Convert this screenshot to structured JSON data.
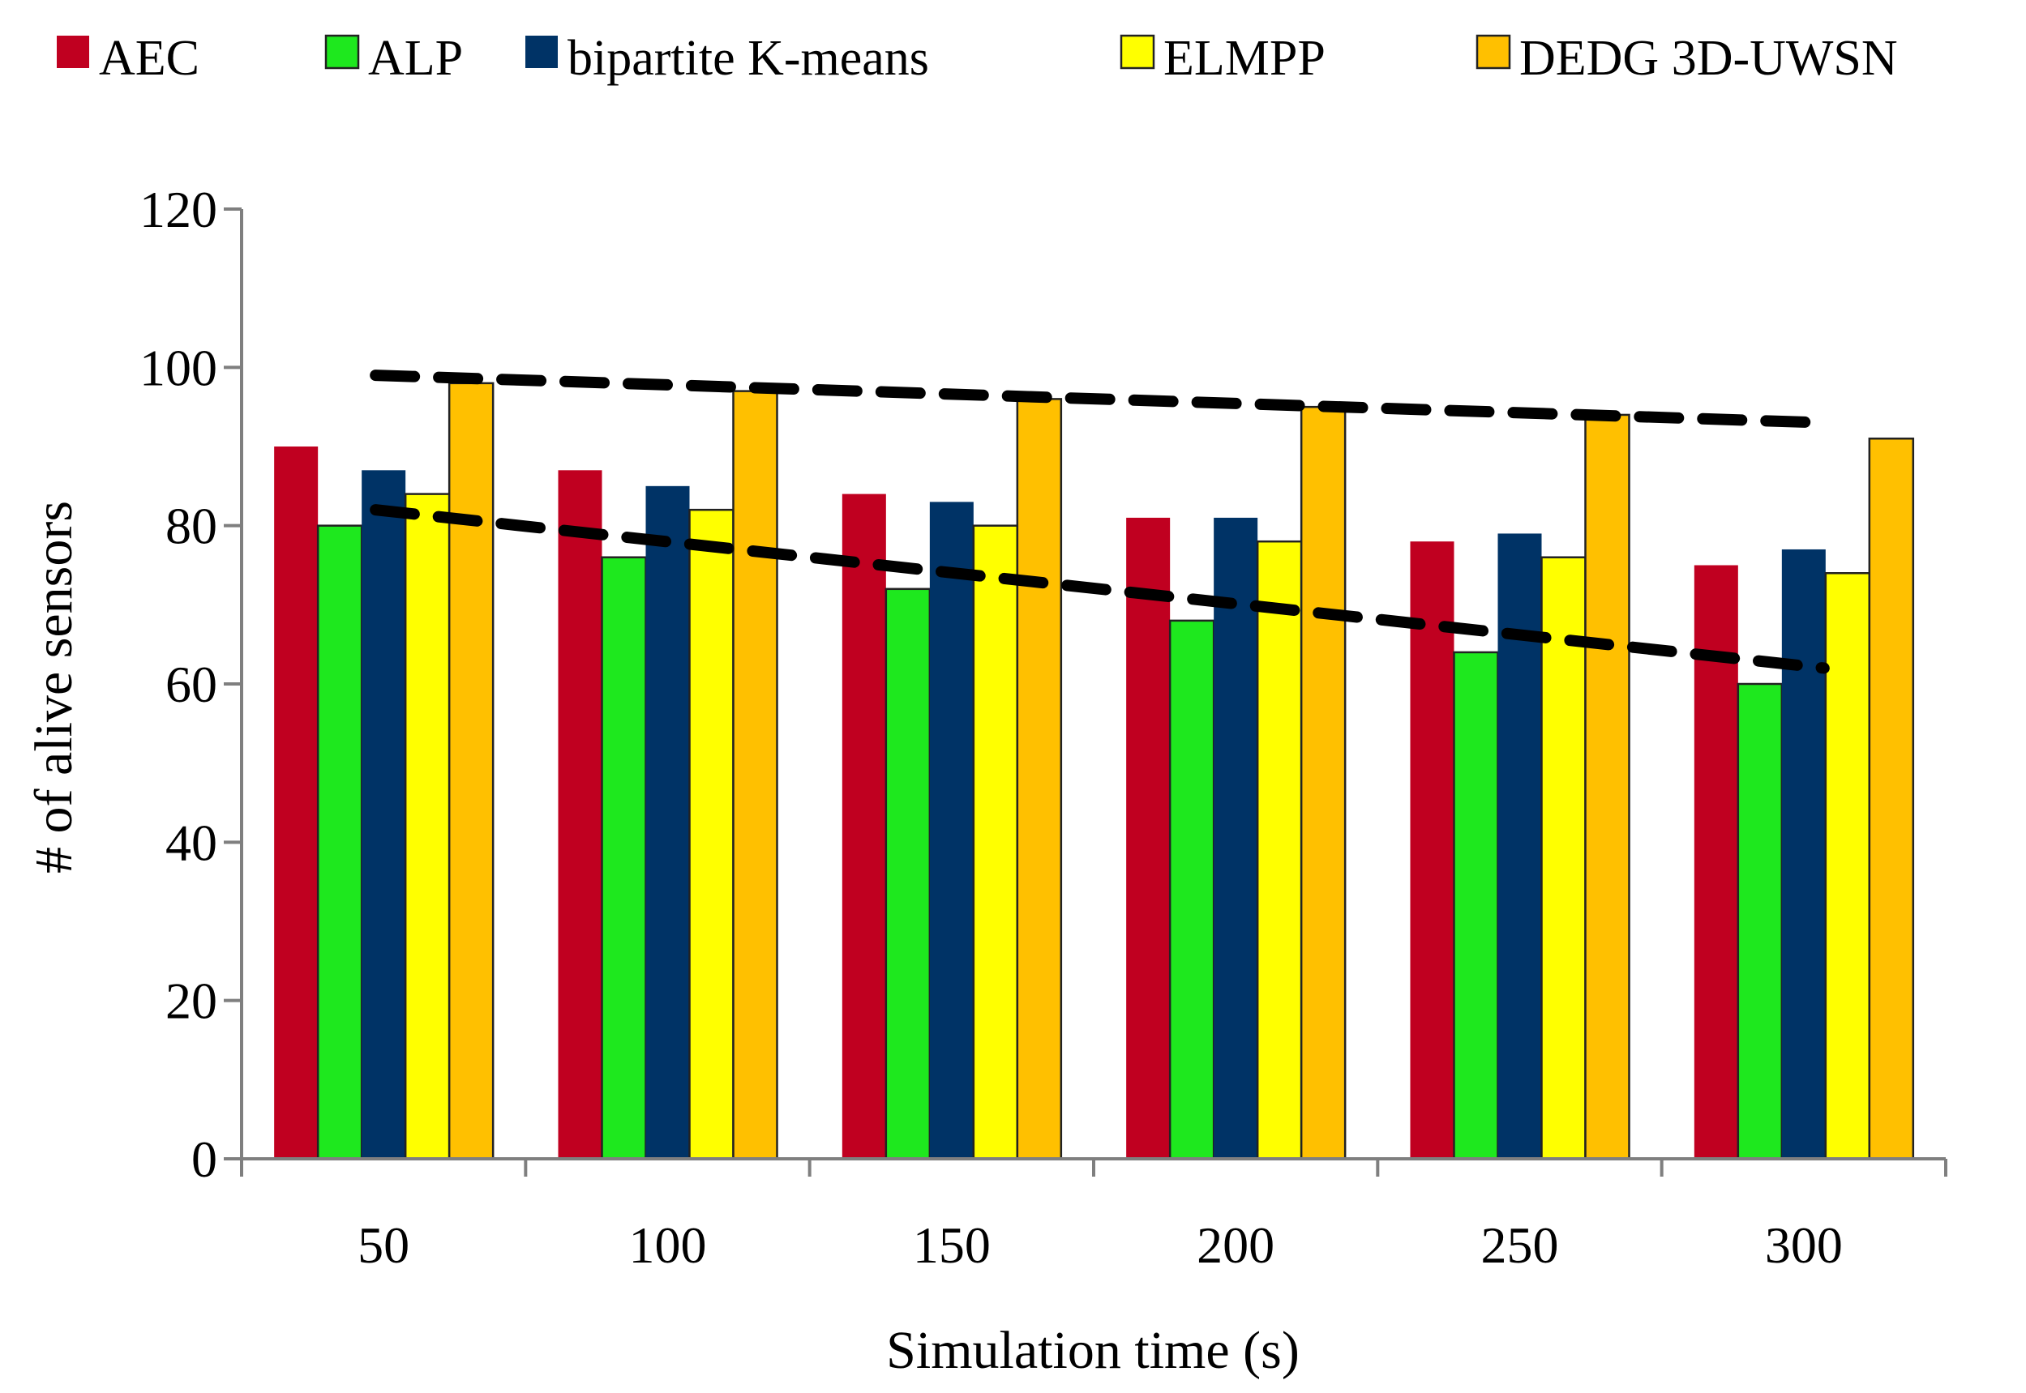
{
  "chart_data": {
    "type": "bar",
    "title": "",
    "xlabel": "Simulation time (s)",
    "ylabel": "# of alive sensors",
    "categories": [
      "50",
      "100",
      "150",
      "200",
      "250",
      "300"
    ],
    "ylim": [
      0,
      120
    ],
    "yticks": [
      "0",
      "20",
      "40",
      "60",
      "80",
      "100",
      "120"
    ],
    "grid": false,
    "legend_position": "top",
    "series": [
      {
        "name": "AEC",
        "color": "#c00020",
        "values": [
          90,
          87,
          84,
          81,
          78,
          75
        ]
      },
      {
        "name": "ALP",
        "color": "#1ee81e",
        "values": [
          80,
          76,
          72,
          68,
          64,
          60
        ]
      },
      {
        "name": "bipartite K-means",
        "color": "#003366",
        "values": [
          87,
          85,
          83,
          81,
          79,
          77
        ]
      },
      {
        "name": "ELMPP",
        "color": "#ffff00",
        "values": [
          84,
          82,
          80,
          78,
          76,
          74
        ]
      },
      {
        "name": "DEDG 3D-UWSN",
        "color": "#ffc000",
        "values": [
          98,
          97,
          96,
          95,
          94,
          91
        ]
      }
    ],
    "trend_lines": [
      {
        "name": "upper dashed trend",
        "style": "dashed",
        "color": "#000000",
        "x": [
          "50",
          "300"
        ],
        "y": [
          99,
          93
        ]
      },
      {
        "name": "lower dashed trend",
        "style": "dashed",
        "color": "#000000",
        "x": [
          "50",
          "300"
        ],
        "y": [
          82,
          62
        ]
      }
    ]
  }
}
